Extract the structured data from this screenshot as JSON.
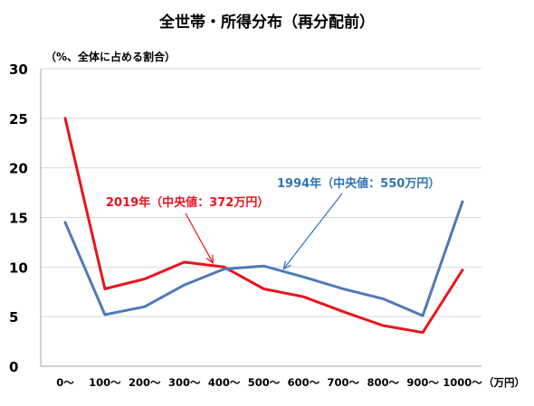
{
  "chart_data": {
    "type": "line",
    "title": "全世帯・所得分布（再分配前）",
    "ylabel": "（%、全体に占める割合）",
    "x_unit": "（万円）",
    "categories": [
      "0～",
      "100～",
      "200～",
      "300～",
      "400～",
      "500～",
      "600～",
      "700～",
      "800～",
      "900～",
      "1000～"
    ],
    "ylim": [
      0,
      30
    ],
    "yticks": [
      0,
      5,
      10,
      15,
      20,
      25,
      30
    ],
    "grid": true,
    "series": [
      {
        "name": "2019年",
        "color": "#e8141e",
        "values": [
          25.0,
          7.8,
          8.8,
          10.5,
          10.0,
          7.8,
          7.0,
          5.5,
          4.1,
          3.4,
          9.7
        ]
      },
      {
        "name": "1994年",
        "color": "#4f7ab8",
        "values": [
          14.5,
          5.2,
          6.0,
          8.2,
          9.8,
          10.1,
          9.0,
          7.8,
          6.8,
          5.1,
          16.6
        ]
      }
    ],
    "annotations": [
      {
        "text": "2019年（中央値：372万円）",
        "color": "#e8141e",
        "points_to_x": 3.72,
        "series": 0
      },
      {
        "text": "1994年（中央値：550万円）",
        "color": "#2e75b6",
        "points_to_x": 5.5,
        "series": 1
      }
    ]
  }
}
